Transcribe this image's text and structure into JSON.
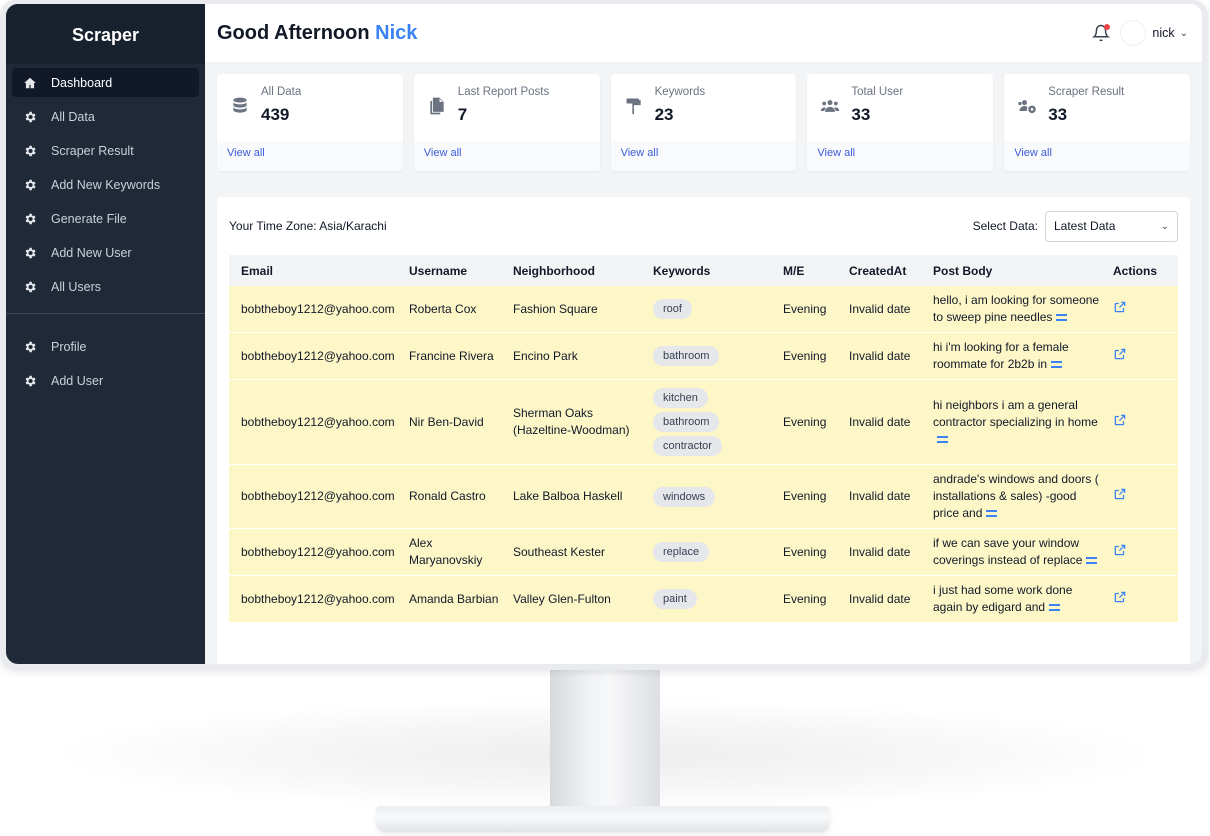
{
  "app": {
    "brand": "Scraper"
  },
  "sidebar": {
    "items": [
      {
        "label": "Dashboard",
        "icon": "home-icon",
        "active": true
      },
      {
        "label": "All Data",
        "icon": "gear-icon"
      },
      {
        "label": "Scraper Result",
        "icon": "gear-icon"
      },
      {
        "label": "Add New Keywords",
        "icon": "gear-icon"
      },
      {
        "label": "Generate File",
        "icon": "gear-icon"
      },
      {
        "label": "Add New User",
        "icon": "gear-icon"
      },
      {
        "label": "All Users",
        "icon": "gear-icon"
      }
    ],
    "secondary_items": [
      {
        "label": "Profile",
        "icon": "gear-icon"
      },
      {
        "label": "Add User",
        "icon": "gear-icon"
      }
    ]
  },
  "header": {
    "greeting": "Good Afternoon",
    "name": "Nick",
    "user_menu": "nick"
  },
  "stats": [
    {
      "label": "All Data",
      "value": "439",
      "link": "View all",
      "icon": "database-icon"
    },
    {
      "label": "Last Report Posts",
      "value": "7",
      "link": "View all",
      "icon": "documents-icon"
    },
    {
      "label": "Keywords",
      "value": "23",
      "link": "View all",
      "icon": "paint-roller-icon"
    },
    {
      "label": "Total User",
      "value": "33",
      "link": "View all",
      "icon": "users-icon"
    },
    {
      "label": "Scraper Result",
      "value": "33",
      "link": "View all",
      "icon": "users-cog-icon"
    }
  ],
  "panel": {
    "timezone": "Your Time Zone: Asia/Karachi",
    "select_label": "Select Data:",
    "select_value": "Latest Data"
  },
  "table": {
    "columns": [
      "Email",
      "Username",
      "Neighborhood",
      "Keywords",
      "M/E",
      "CreatedAt",
      "Post Body",
      "Actions"
    ],
    "rows": [
      {
        "email": "bobtheboy1212@yahoo.com",
        "username": "Roberta Cox",
        "neighborhood": "Fashion Square",
        "keywords": [
          "roof"
        ],
        "me": "Evening",
        "created": "Invalid date",
        "post": "hello, i am looking for someone to sweep pine needles"
      },
      {
        "email": "bobtheboy1212@yahoo.com",
        "username": "Francine Rivera",
        "neighborhood": "Encino Park",
        "keywords": [
          "bathroom"
        ],
        "me": "Evening",
        "created": "Invalid date",
        "post": "hi i'm looking for a female roommate for 2b2b in"
      },
      {
        "email": "bobtheboy1212@yahoo.com",
        "username": "Nir Ben-David",
        "neighborhood": "Sherman Oaks (Hazeltine-Woodman)",
        "keywords": [
          "kitchen",
          "bathroom",
          "contractor"
        ],
        "me": "Evening",
        "created": "Invalid date",
        "post": "hi neighbors i am a general contractor specializing in home"
      },
      {
        "email": "bobtheboy1212@yahoo.com",
        "username": "Ronald Castro",
        "neighborhood": "Lake Balboa Haskell",
        "keywords": [
          "windows"
        ],
        "me": "Evening",
        "created": "Invalid date",
        "post": "andrade's windows and doors ( installations & sales) -good price and"
      },
      {
        "email": "bobtheboy1212@yahoo.com",
        "username": "Alex Maryanovskiy",
        "neighborhood": "Southeast Kester",
        "keywords": [
          "replace"
        ],
        "me": "Evening",
        "created": "Invalid date",
        "post": "if we can save your window coverings instead of replace"
      },
      {
        "email": "bobtheboy1212@yahoo.com",
        "username": "Amanda Barbian",
        "neighborhood": "Valley Glen-Fulton",
        "keywords": [
          "paint"
        ],
        "me": "Evening",
        "created": "Invalid date",
        "post": "i just had some work done again by edigard and"
      }
    ]
  },
  "colors": {
    "accent": "#3b82f6",
    "sidebar": "#1f2937",
    "row_highlight": "#fdf7c8"
  }
}
